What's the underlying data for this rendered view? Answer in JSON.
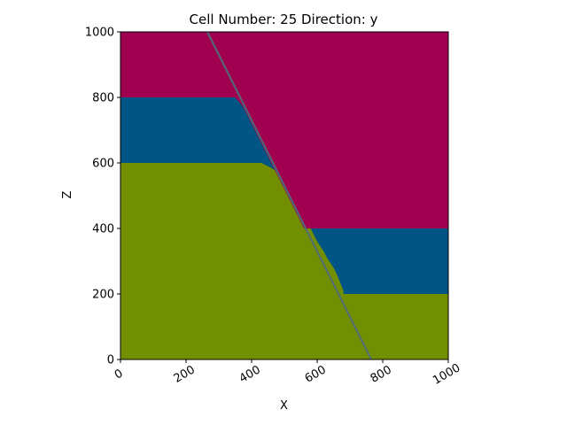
{
  "chart_data": {
    "type": "area",
    "title": "Cell Number: 25 Direction: y",
    "xlabel": "X",
    "ylabel": "Z",
    "xlim": [
      0,
      1000
    ],
    "ylim": [
      0,
      1000
    ],
    "x_ticks": [
      "0",
      "200",
      "400",
      "600",
      "800",
      "1000"
    ],
    "y_ticks": [
      "0",
      "200",
      "400",
      "600",
      "800",
      "1000"
    ],
    "x_tick_rotation_deg": 30,
    "grid": false,
    "colors": {
      "top_layer": "#a00050",
      "middle_layer": "#005584",
      "bottom_layer": "#728f02",
      "fault_line": "#4d6e7a"
    },
    "fault": {
      "x": [
        265,
        765
      ],
      "z": [
        1000,
        0
      ]
    },
    "layers": [
      {
        "role": "top",
        "color_key": "top_layer",
        "boundary_left_x": [
          0,
          350,
          375,
          560
        ],
        "boundary_left_z": [
          800,
          800,
          770,
          400
        ],
        "boundary_right_x": [
          560,
          1000
        ],
        "boundary_right_z": [
          400,
          400
        ]
      },
      {
        "role": "middle",
        "color_key": "middle_layer",
        "boundary_left_x": [
          0,
          430,
          450,
          460,
          475,
          480,
          490,
          500,
          510,
          520,
          530,
          540,
          560,
          570,
          580,
          590,
          600,
          620,
          630,
          650,
          660,
          670,
          680
        ],
        "boundary_left_z": [
          600,
          600,
          590,
          585,
          575,
          560,
          545,
          530,
          510,
          490,
          470,
          450,
          430,
          415,
          400,
          380,
          360,
          330,
          310,
          280,
          260,
          235,
          210
        ],
        "boundary_right_x": [
          680,
          700,
          1000
        ],
        "boundary_right_z": [
          200,
          200,
          200
        ]
      }
    ]
  }
}
